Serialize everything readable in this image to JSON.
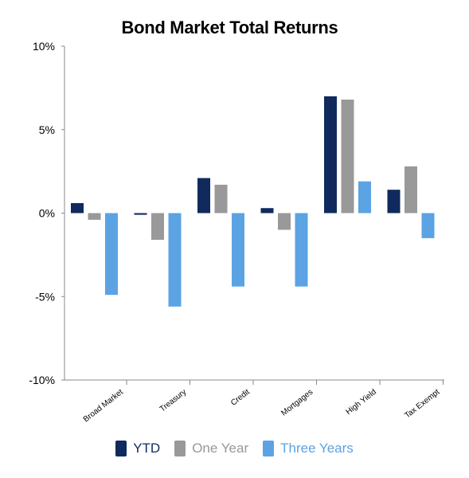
{
  "chart_data": {
    "type": "bar",
    "title": "Bond Market Total Returns",
    "categories": [
      "Broad Market",
      "Treasury",
      "Credit",
      "Mortgages",
      "High Yield",
      "Tax Exempt"
    ],
    "series": [
      {
        "name": "YTD",
        "color": "#102a5e",
        "values": [
          0.6,
          -0.1,
          2.1,
          0.3,
          7.0,
          1.4
        ]
      },
      {
        "name": "One Year",
        "color": "#999999",
        "values": [
          -0.4,
          -1.6,
          1.7,
          -1.0,
          6.8,
          2.8
        ]
      },
      {
        "name": "Three Years",
        "color": "#5ba3e3",
        "values": [
          -4.9,
          -5.6,
          -4.4,
          -4.4,
          1.9,
          -1.5
        ]
      }
    ],
    "yticks": [
      "10%",
      "5%",
      "0%",
      "-5%",
      "-10%"
    ],
    "ylim": [
      -10,
      10
    ],
    "xlabel": "",
    "ylabel": "",
    "legend_position": "bottom",
    "grid": false
  }
}
